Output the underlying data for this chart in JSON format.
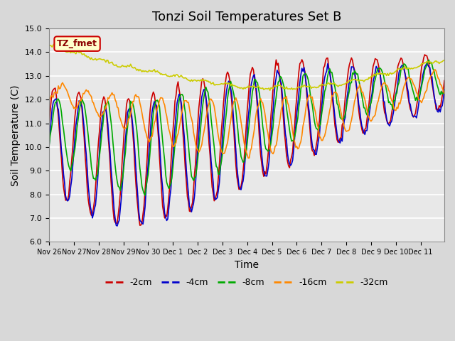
{
  "title": "Tonzi Soil Temperatures Set B",
  "xlabel": "Time",
  "ylabel": "Soil Temperature (C)",
  "ylim": [
    6.0,
    15.0
  ],
  "yticks": [
    6.0,
    7.0,
    8.0,
    9.0,
    10.0,
    11.0,
    12.0,
    13.0,
    14.0,
    15.0
  ],
  "xtick_labels": [
    "Nov 26",
    "Nov 27",
    "Nov 28",
    "Nov 29",
    "Nov 30",
    "Dec 1",
    "Dec 2",
    "Dec 3",
    "Dec 4",
    "Dec 5",
    "Dec 6",
    "Dec 7",
    "Dec 8",
    "Dec 9",
    "Dec 10",
    "Dec 11"
  ],
  "colors": {
    "-2cm": "#cc0000",
    "-4cm": "#0000cc",
    "-8cm": "#00aa00",
    "-16cm": "#ff8800",
    "-32cm": "#cccc00"
  },
  "annotation_text": "TZ_fmet",
  "annotation_bg": "#ffffcc",
  "annotation_border": "#cc0000",
  "plot_bg": "#e8e8e8",
  "title_fontsize": 13,
  "label_fontsize": 10
}
